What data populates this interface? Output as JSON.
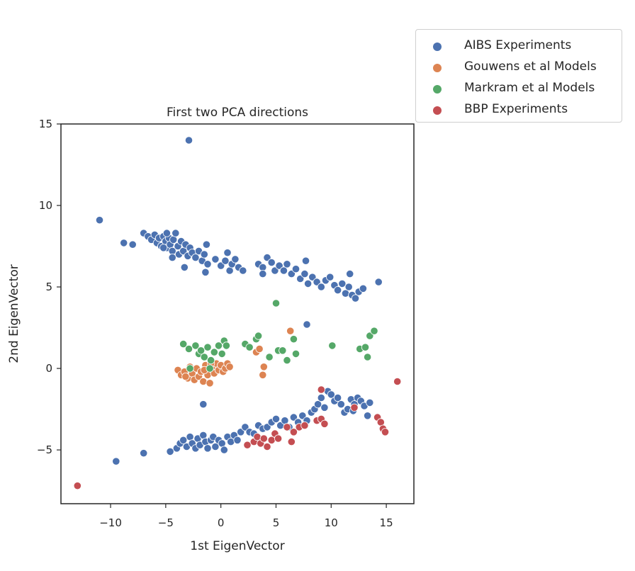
{
  "chart_data": {
    "type": "scatter",
    "title": "First two PCA directions",
    "xlabel": "1st EigenVector",
    "ylabel": "2nd EigenVector",
    "xlim": [
      -14.5,
      17.5
    ],
    "ylim": [
      -8.3,
      15
    ],
    "xticks": [
      -10,
      -5,
      0,
      5,
      10,
      15
    ],
    "yticks": [
      -5,
      0,
      5,
      10,
      15
    ],
    "xtick_labels": [
      "−10",
      "−5",
      "0",
      "5",
      "10",
      "15"
    ],
    "ytick_labels": [
      "−5",
      "0",
      "5",
      "10",
      "15"
    ],
    "grid": false,
    "legend_position": "outside-top-right",
    "series": [
      {
        "name": "AIBS Experiments",
        "color": "#4c72b0",
        "points": [
          [
            -2.9,
            14.0
          ],
          [
            -11.0,
            9.1
          ],
          [
            -8.8,
            7.7
          ],
          [
            -8.0,
            7.6
          ],
          [
            -7.0,
            8.3
          ],
          [
            -6.6,
            8.1
          ],
          [
            -6.3,
            7.9
          ],
          [
            -6.0,
            8.2
          ],
          [
            -5.8,
            7.7
          ],
          [
            -5.6,
            8.0
          ],
          [
            -5.4,
            7.5
          ],
          [
            -5.2,
            8.1
          ],
          [
            -5.0,
            7.8
          ],
          [
            -4.9,
            7.4
          ],
          [
            -4.7,
            8.0
          ],
          [
            -4.6,
            7.6
          ],
          [
            -4.4,
            7.2
          ],
          [
            -4.3,
            7.9
          ],
          [
            -4.1,
            8.3
          ],
          [
            -3.9,
            7.5
          ],
          [
            -3.8,
            7.0
          ],
          [
            -3.6,
            7.8
          ],
          [
            -3.4,
            7.2
          ],
          [
            -3.2,
            7.6
          ],
          [
            -3.0,
            6.9
          ],
          [
            -2.8,
            7.4
          ],
          [
            -2.6,
            7.1
          ],
          [
            -2.3,
            6.8
          ],
          [
            -2.0,
            7.2
          ],
          [
            -1.7,
            6.6
          ],
          [
            -1.5,
            7.0
          ],
          [
            -1.3,
            7.6
          ],
          [
            -1.2,
            6.4
          ],
          [
            -3.3,
            6.2
          ],
          [
            -1.4,
            5.9
          ],
          [
            -4.4,
            6.8
          ],
          [
            -5.2,
            7.4
          ],
          [
            -4.9,
            8.3
          ],
          [
            -0.5,
            6.7
          ],
          [
            0.0,
            6.3
          ],
          [
            0.4,
            6.6
          ],
          [
            0.6,
            7.1
          ],
          [
            0.8,
            6.0
          ],
          [
            1.0,
            6.4
          ],
          [
            1.3,
            6.7
          ],
          [
            1.6,
            6.2
          ],
          [
            2.0,
            6.0
          ],
          [
            3.4,
            6.4
          ],
          [
            3.8,
            6.2
          ],
          [
            4.2,
            6.8
          ],
          [
            4.6,
            6.5
          ],
          [
            4.9,
            6.0
          ],
          [
            5.3,
            6.3
          ],
          [
            5.7,
            6.0
          ],
          [
            6.0,
            6.4
          ],
          [
            6.4,
            5.8
          ],
          [
            6.8,
            6.1
          ],
          [
            7.2,
            5.5
          ],
          [
            7.6,
            5.8
          ],
          [
            7.9,
            5.2
          ],
          [
            8.3,
            5.6
          ],
          [
            8.7,
            5.3
          ],
          [
            9.1,
            5.0
          ],
          [
            9.5,
            5.4
          ],
          [
            9.9,
            5.6
          ],
          [
            10.3,
            5.1
          ],
          [
            10.6,
            4.8
          ],
          [
            11.0,
            5.2
          ],
          [
            11.3,
            4.6
          ],
          [
            11.6,
            5.0
          ],
          [
            11.9,
            4.5
          ],
          [
            12.2,
            4.3
          ],
          [
            12.5,
            4.7
          ],
          [
            12.9,
            4.9
          ],
          [
            11.7,
            5.8
          ],
          [
            14.3,
            5.3
          ],
          [
            7.7,
            6.6
          ],
          [
            3.8,
            5.8
          ],
          [
            7.8,
            2.7
          ],
          [
            -1.6,
            -2.2
          ],
          [
            -4.6,
            -5.1
          ],
          [
            -4.0,
            -4.9
          ],
          [
            -3.7,
            -4.6
          ],
          [
            -3.4,
            -4.4
          ],
          [
            -3.1,
            -4.8
          ],
          [
            -2.8,
            -4.2
          ],
          [
            -2.6,
            -4.6
          ],
          [
            -2.3,
            -4.9
          ],
          [
            -2.1,
            -4.3
          ],
          [
            -1.9,
            -4.7
          ],
          [
            -1.6,
            -4.1
          ],
          [
            -1.4,
            -4.5
          ],
          [
            -1.2,
            -4.9
          ],
          [
            -0.9,
            -4.4
          ],
          [
            -0.7,
            -4.2
          ],
          [
            -0.5,
            -4.8
          ],
          [
            -0.2,
            -4.4
          ],
          [
            0.1,
            -4.6
          ],
          [
            0.3,
            -5.0
          ],
          [
            0.6,
            -4.2
          ],
          [
            0.9,
            -4.5
          ],
          [
            1.2,
            -4.1
          ],
          [
            1.5,
            -4.4
          ],
          [
            1.8,
            -3.9
          ],
          [
            2.2,
            -3.6
          ],
          [
            2.6,
            -3.9
          ],
          [
            3.0,
            -4.0
          ],
          [
            3.4,
            -3.5
          ],
          [
            3.8,
            -3.7
          ],
          [
            4.2,
            -3.6
          ],
          [
            4.6,
            -3.3
          ],
          [
            5.0,
            -3.1
          ],
          [
            5.4,
            -3.5
          ],
          [
            5.8,
            -3.2
          ],
          [
            6.2,
            -3.6
          ],
          [
            6.6,
            -3.0
          ],
          [
            7.0,
            -3.3
          ],
          [
            7.4,
            -2.9
          ],
          [
            7.8,
            -3.2
          ],
          [
            8.2,
            -2.7
          ],
          [
            8.5,
            -2.5
          ],
          [
            8.8,
            -2.2
          ],
          [
            9.1,
            -1.8
          ],
          [
            9.4,
            -2.4
          ],
          [
            9.7,
            -1.4
          ],
          [
            10.0,
            -1.6
          ],
          [
            10.3,
            -2.0
          ],
          [
            10.6,
            -1.8
          ],
          [
            10.9,
            -2.2
          ],
          [
            11.2,
            -2.7
          ],
          [
            11.5,
            -2.5
          ],
          [
            11.8,
            -1.9
          ],
          [
            12.1,
            -2.2
          ],
          [
            12.4,
            -1.8
          ],
          [
            12.7,
            -2.0
          ],
          [
            13.0,
            -2.3
          ],
          [
            13.3,
            -2.9
          ],
          [
            13.5,
            -2.1
          ],
          [
            12.0,
            -2.6
          ],
          [
            -9.5,
            -5.7
          ],
          [
            -7.0,
            -5.2
          ]
        ]
      },
      {
        "name": "Gouwens et al Models",
        "color": "#dd8452",
        "points": [
          [
            -3.9,
            -0.1
          ],
          [
            -3.6,
            -0.4
          ],
          [
            -3.3,
            -0.2
          ],
          [
            -3.0,
            -0.6
          ],
          [
            -2.8,
            0.1
          ],
          [
            -2.6,
            -0.3
          ],
          [
            -2.4,
            -0.7
          ],
          [
            -2.2,
            0.0
          ],
          [
            -2.0,
            -0.5
          ],
          [
            -1.8,
            -0.2
          ],
          [
            -1.6,
            -0.8
          ],
          [
            -1.4,
            0.2
          ],
          [
            -1.2,
            -0.4
          ],
          [
            -1.0,
            -0.9
          ],
          [
            -0.8,
            0.1
          ],
          [
            -0.6,
            -0.3
          ],
          [
            -0.4,
            0.3
          ],
          [
            -0.2,
            -0.1
          ],
          [
            0.0,
            0.2
          ],
          [
            0.2,
            -0.2
          ],
          [
            0.4,
            0.0
          ],
          [
            0.6,
            0.3
          ],
          [
            0.8,
            0.1
          ],
          [
            -3.2,
            -0.5
          ],
          [
            -1.5,
            -0.1
          ],
          [
            -0.9,
            0.3
          ],
          [
            3.2,
            1.0
          ],
          [
            3.5,
            1.2
          ],
          [
            6.3,
            2.3
          ],
          [
            3.9,
            0.1
          ],
          [
            3.8,
            -0.4
          ]
        ]
      },
      {
        "name": "Markram et al Models",
        "color": "#55a868",
        "points": [
          [
            -3.4,
            1.5
          ],
          [
            -2.9,
            1.2
          ],
          [
            -2.3,
            1.4
          ],
          [
            -2.0,
            0.9
          ],
          [
            -1.8,
            1.1
          ],
          [
            -1.5,
            0.7
          ],
          [
            -1.2,
            1.3
          ],
          [
            -0.9,
            0.5
          ],
          [
            -0.6,
            1.0
          ],
          [
            -0.2,
            1.4
          ],
          [
            0.3,
            1.7
          ],
          [
            0.5,
            1.4
          ],
          [
            -2.8,
            0.0
          ],
          [
            -1.0,
            0.0
          ],
          [
            0.1,
            0.9
          ],
          [
            2.2,
            1.5
          ],
          [
            2.6,
            1.3
          ],
          [
            3.2,
            1.8
          ],
          [
            3.4,
            2.0
          ],
          [
            4.4,
            0.7
          ],
          [
            5.0,
            4.0
          ],
          [
            5.2,
            1.1
          ],
          [
            5.6,
            1.1
          ],
          [
            6.0,
            0.5
          ],
          [
            6.6,
            1.8
          ],
          [
            6.8,
            0.9
          ],
          [
            10.1,
            1.4
          ],
          [
            12.6,
            1.2
          ],
          [
            13.1,
            1.3
          ],
          [
            13.3,
            0.7
          ],
          [
            13.5,
            2.0
          ],
          [
            13.9,
            2.3
          ]
        ]
      },
      {
        "name": "BBP Experiments",
        "color": "#c44e52",
        "points": [
          [
            -13.0,
            -7.2
          ],
          [
            16.0,
            -0.8
          ],
          [
            2.4,
            -4.7
          ],
          [
            3.0,
            -4.5
          ],
          [
            3.3,
            -4.2
          ],
          [
            3.6,
            -4.6
          ],
          [
            3.9,
            -4.3
          ],
          [
            4.2,
            -4.8
          ],
          [
            4.6,
            -4.4
          ],
          [
            4.9,
            -4.0
          ],
          [
            5.2,
            -4.3
          ],
          [
            6.0,
            -3.6
          ],
          [
            6.4,
            -4.5
          ],
          [
            6.6,
            -3.9
          ],
          [
            7.1,
            -3.6
          ],
          [
            7.6,
            -3.5
          ],
          [
            8.7,
            -3.2
          ],
          [
            9.1,
            -3.1
          ],
          [
            9.4,
            -3.4
          ],
          [
            9.1,
            -1.3
          ],
          [
            12.1,
            -2.4
          ],
          [
            14.2,
            -3.0
          ],
          [
            14.5,
            -3.3
          ],
          [
            14.7,
            -3.7
          ],
          [
            14.9,
            -3.9
          ]
        ]
      }
    ]
  }
}
